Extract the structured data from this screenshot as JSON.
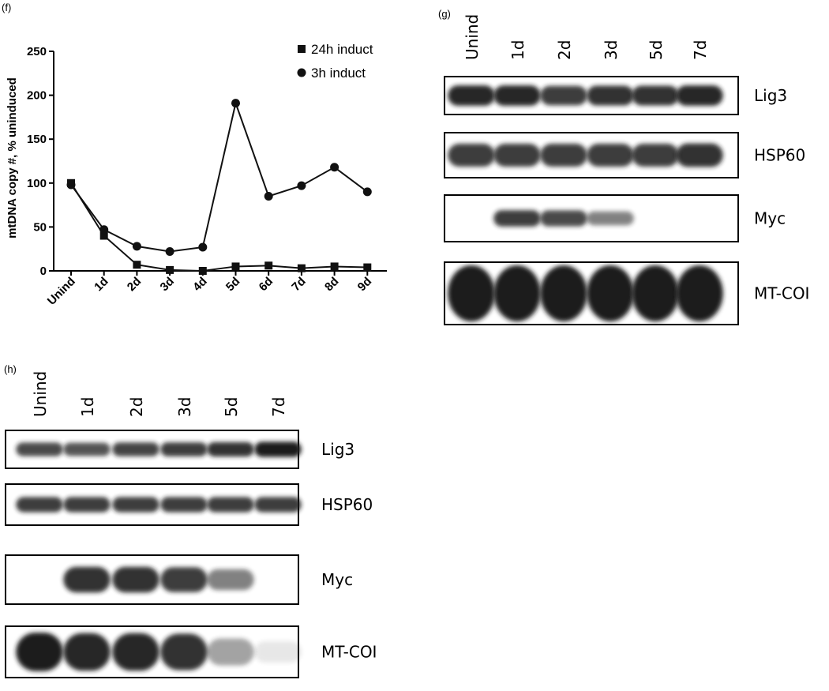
{
  "chart_data": {
    "type": "line",
    "panel_label": "(f)",
    "y_label": "mtDNA copy #, % uninduced",
    "categories": [
      "Unind",
      "1d",
      "2d",
      "3d",
      "4d",
      "5d",
      "6d",
      "7d",
      "8d",
      "9d"
    ],
    "series": [
      {
        "name": "24h induct",
        "marker": "square",
        "color": "#111111",
        "values": [
          100,
          40,
          7,
          1,
          0,
          5,
          6,
          3,
          5,
          4
        ]
      },
      {
        "name": "3h induct",
        "marker": "circle",
        "color": "#111111",
        "values": [
          98,
          47,
          28,
          22,
          27,
          191,
          85,
          97,
          118,
          90
        ]
      }
    ],
    "ylim": [
      0,
      250
    ],
    "yticks": [
      0,
      50,
      100,
      150,
      200,
      250
    ],
    "legend": "upper right"
  },
  "blots": [
    {
      "panel_label": "(g)",
      "lanes": [
        "Unind",
        "1d",
        "2d",
        "3d",
        "5d",
        "7d"
      ],
      "proteins": [
        "Lig3",
        "HSP60",
        "Myc",
        "MT-COI"
      ]
    },
    {
      "panel_label": "(h)",
      "lanes": [
        "Unind",
        "1d",
        "2d",
        "3d",
        "5d",
        "7d"
      ],
      "proteins": [
        "Lig3",
        "HSP60",
        "Myc",
        "MT-COI"
      ]
    }
  ]
}
